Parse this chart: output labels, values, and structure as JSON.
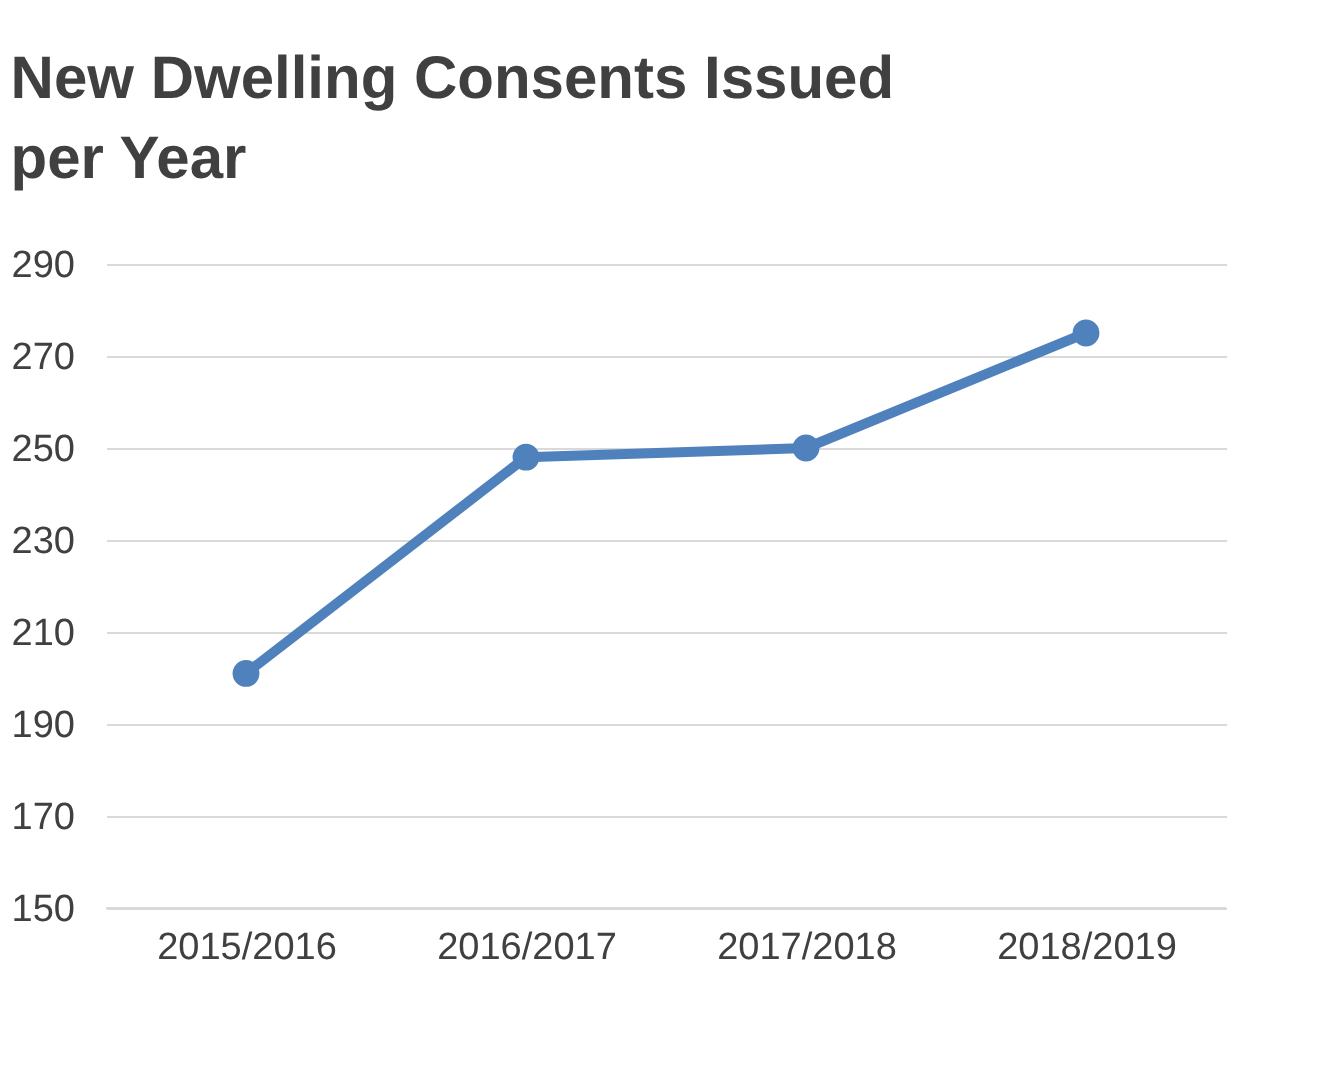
{
  "chart_data": {
    "type": "line",
    "title": "New Dwelling Consents  Issued per Year",
    "categories": [
      "2015/2016",
      "2016/2017",
      "2017/2018",
      "2018/2019"
    ],
    "series": [
      {
        "color": "#4f81bd",
        "values": [
          201,
          248,
          250,
          275
        ]
      }
    ],
    "ylim": [
      150,
      290
    ],
    "yticks": [
      150,
      170,
      190,
      210,
      230,
      250,
      270,
      290
    ],
    "grid": "y",
    "marker": "circle",
    "line_style": "solid",
    "legend": false
  }
}
